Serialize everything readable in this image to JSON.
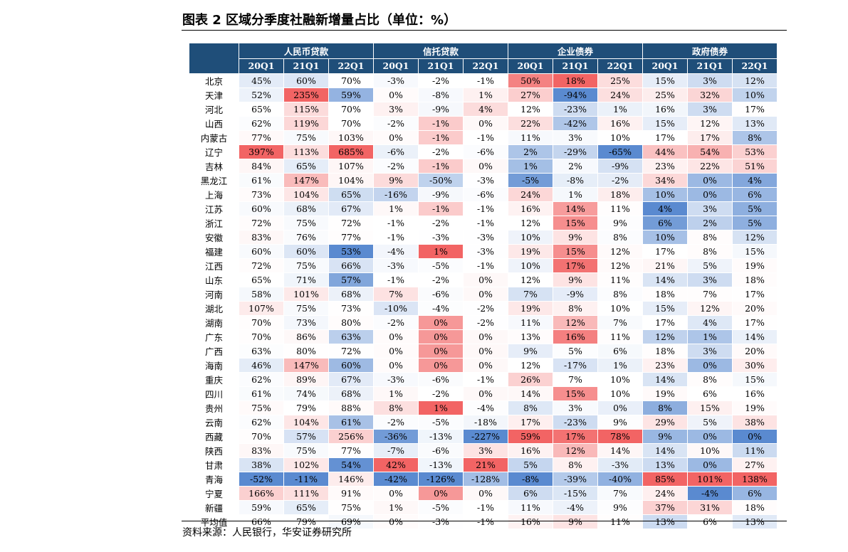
{
  "header": {
    "title": "图表 2  区域分季度社融新增量占比（单位：%）"
  },
  "table": {
    "groups": [
      "人民币贷款",
      "信托贷款",
      "企业债券",
      "政府债券"
    ],
    "subheaders": [
      "20Q1",
      "21Q1",
      "22Q1",
      "20Q1",
      "21Q1",
      "22Q1",
      "20Q1",
      "21Q1",
      "22Q1",
      "20Q1",
      "21Q1",
      "22Q1"
    ],
    "rows": [
      {
        "name": "北京",
        "cells": [
          "45%",
          "60%",
          "70%",
          "-3%",
          "-2%",
          "-1%",
          "50%",
          "18%",
          "25%",
          "15%",
          "3%",
          "12%"
        ]
      },
      {
        "name": "天津",
        "cells": [
          "52%",
          "235%",
          "59%",
          "0%",
          "-8%",
          "1%",
          "27%",
          "-94%",
          "24%",
          "25%",
          "32%",
          "10%"
        ]
      },
      {
        "name": "河北",
        "cells": [
          "65%",
          "115%",
          "70%",
          "3%",
          "-9%",
          "4%",
          "12%",
          "-23%",
          "1%",
          "16%",
          "3%",
          "17%"
        ]
      },
      {
        "name": "山西",
        "cells": [
          "62%",
          "119%",
          "70%",
          "-2%",
          "-1%",
          "0%",
          "22%",
          "-42%",
          "16%",
          "15%",
          "12%",
          "13%"
        ]
      },
      {
        "name": "内蒙古",
        "cells": [
          "77%",
          "75%",
          "103%",
          "0%",
          "-1%",
          "-1%",
          "11%",
          "3%",
          "10%",
          "17%",
          "17%",
          "8%"
        ]
      },
      {
        "name": "辽宁",
        "cells": [
          "397%",
          "113%",
          "685%",
          "-6%",
          "-2%",
          "-6%",
          "2%",
          "-29%",
          "-65%",
          "44%",
          "54%",
          "53%"
        ]
      },
      {
        "name": "吉林",
        "cells": [
          "84%",
          "65%",
          "107%",
          "-2%",
          "-1%",
          "0%",
          "1%",
          "2%",
          "-9%",
          "23%",
          "22%",
          "51%"
        ]
      },
      {
        "name": "黑龙江",
        "cells": [
          "61%",
          "147%",
          "104%",
          "9%",
          "-50%",
          "-3%",
          "-5%",
          "-8%",
          "-2%",
          "34%",
          "0%",
          "4%"
        ]
      },
      {
        "name": "上海",
        "cells": [
          "73%",
          "104%",
          "65%",
          "-16%",
          "-9%",
          "-6%",
          "24%",
          "1%",
          "18%",
          "10%",
          "0%",
          "6%"
        ]
      },
      {
        "name": "江苏",
        "cells": [
          "60%",
          "68%",
          "67%",
          "1%",
          "-1%",
          "-1%",
          "16%",
          "14%",
          "11%",
          "4%",
          "3%",
          "5%"
        ]
      },
      {
        "name": "浙江",
        "cells": [
          "72%",
          "75%",
          "72%",
          "-1%",
          "-2%",
          "-1%",
          "12%",
          "15%",
          "9%",
          "6%",
          "2%",
          "5%"
        ]
      },
      {
        "name": "安徽",
        "cells": [
          "83%",
          "76%",
          "77%",
          "-1%",
          "-3%",
          "-3%",
          "10%",
          "9%",
          "8%",
          "10%",
          "8%",
          "12%"
        ]
      },
      {
        "name": "福建",
        "cells": [
          "60%",
          "60%",
          "53%",
          "-4%",
          "1%",
          "-3%",
          "19%",
          "15%",
          "12%",
          "17%",
          "8%",
          "15%"
        ]
      },
      {
        "name": "江西",
        "cells": [
          "72%",
          "75%",
          "66%",
          "-3%",
          "-5%",
          "-1%",
          "10%",
          "17%",
          "12%",
          "21%",
          "5%",
          "19%"
        ]
      },
      {
        "name": "山东",
        "cells": [
          "65%",
          "71%",
          "57%",
          "-1%",
          "-2%",
          "0%",
          "12%",
          "9%",
          "11%",
          "14%",
          "3%",
          "18%"
        ]
      },
      {
        "name": "河南",
        "cells": [
          "58%",
          "101%",
          "68%",
          "7%",
          "-6%",
          "0%",
          "7%",
          "-9%",
          "8%",
          "18%",
          "7%",
          "17%"
        ]
      },
      {
        "name": "湖北",
        "cells": [
          "107%",
          "75%",
          "73%",
          "-10%",
          "-4%",
          "-2%",
          "19%",
          "8%",
          "10%",
          "15%",
          "12%",
          "20%"
        ]
      },
      {
        "name": "湖南",
        "cells": [
          "70%",
          "73%",
          "80%",
          "-2%",
          "0%",
          "-2%",
          "11%",
          "12%",
          "7%",
          "17%",
          "4%",
          "17%"
        ]
      },
      {
        "name": "广东",
        "cells": [
          "70%",
          "86%",
          "63%",
          "0%",
          "0%",
          "0%",
          "13%",
          "16%",
          "11%",
          "12%",
          "1%",
          "14%"
        ]
      },
      {
        "name": "广西",
        "cells": [
          "63%",
          "80%",
          "72%",
          "0%",
          "0%",
          "0%",
          "9%",
          "5%",
          "6%",
          "18%",
          "3%",
          "20%"
        ]
      },
      {
        "name": "海南",
        "cells": [
          "46%",
          "147%",
          "60%",
          "0%",
          "0%",
          "0%",
          "12%",
          "-17%",
          "1%",
          "23%",
          "0%",
          "30%"
        ]
      },
      {
        "name": "重庆",
        "cells": [
          "62%",
          "89%",
          "67%",
          "-3%",
          "-6%",
          "-1%",
          "26%",
          "7%",
          "10%",
          "14%",
          "8%",
          "15%"
        ]
      },
      {
        "name": "四川",
        "cells": [
          "61%",
          "74%",
          "68%",
          "1%",
          "-2%",
          "0%",
          "14%",
          "15%",
          "10%",
          "19%",
          "6%",
          "16%"
        ]
      },
      {
        "name": "贵州",
        "cells": [
          "75%",
          "79%",
          "88%",
          "8%",
          "1%",
          "-4%",
          "8%",
          "3%",
          "0%",
          "8%",
          "15%",
          "19%"
        ]
      },
      {
        "name": "云南",
        "cells": [
          "62%",
          "104%",
          "61%",
          "-2%",
          "-5%",
          "-18%",
          "17%",
          "-23%",
          "9%",
          "29%",
          "5%",
          "38%"
        ]
      },
      {
        "name": "西藏",
        "cells": [
          "70%",
          "57%",
          "256%",
          "-36%",
          "-13%",
          "-227%",
          "59%",
          "17%",
          "78%",
          "9%",
          "0%",
          "0%"
        ]
      },
      {
        "name": "陕西",
        "cells": [
          "83%",
          "75%",
          "77%",
          "-7%",
          "-6%",
          "3%",
          "16%",
          "12%",
          "14%",
          "14%",
          "10%",
          "11%"
        ]
      },
      {
        "name": "甘肃",
        "cells": [
          "38%",
          "102%",
          "54%",
          "42%",
          "-13%",
          "21%",
          "5%",
          "8%",
          "-3%",
          "13%",
          "0%",
          "27%"
        ]
      },
      {
        "name": "青海",
        "cells": [
          "-52%",
          "-11%",
          "146%",
          "-42%",
          "-126%",
          "-128%",
          "-8%",
          "-39%",
          "-40%",
          "85%",
          "101%",
          "138%"
        ]
      },
      {
        "name": "宁夏",
        "cells": [
          "166%",
          "111%",
          "91%",
          "0%",
          "0%",
          "0%",
          "6%",
          "-15%",
          "7%",
          "24%",
          "-4%",
          "6%"
        ]
      },
      {
        "name": "新疆",
        "cells": [
          "59%",
          "65%",
          "75%",
          "1%",
          "-5%",
          "-1%",
          "11%",
          "-4%",
          "9%",
          "37%",
          "31%",
          "18%"
        ]
      },
      {
        "name": "平均值",
        "cells": [
          "66%",
          "79%",
          "69%",
          "0%",
          "-3%",
          "-1%",
          "16%",
          "9%",
          "11%",
          "13%",
          "6%",
          "13%"
        ]
      }
    ]
  },
  "footer": {
    "source": "资料来源：人民银行，华安证券研究所"
  }
}
